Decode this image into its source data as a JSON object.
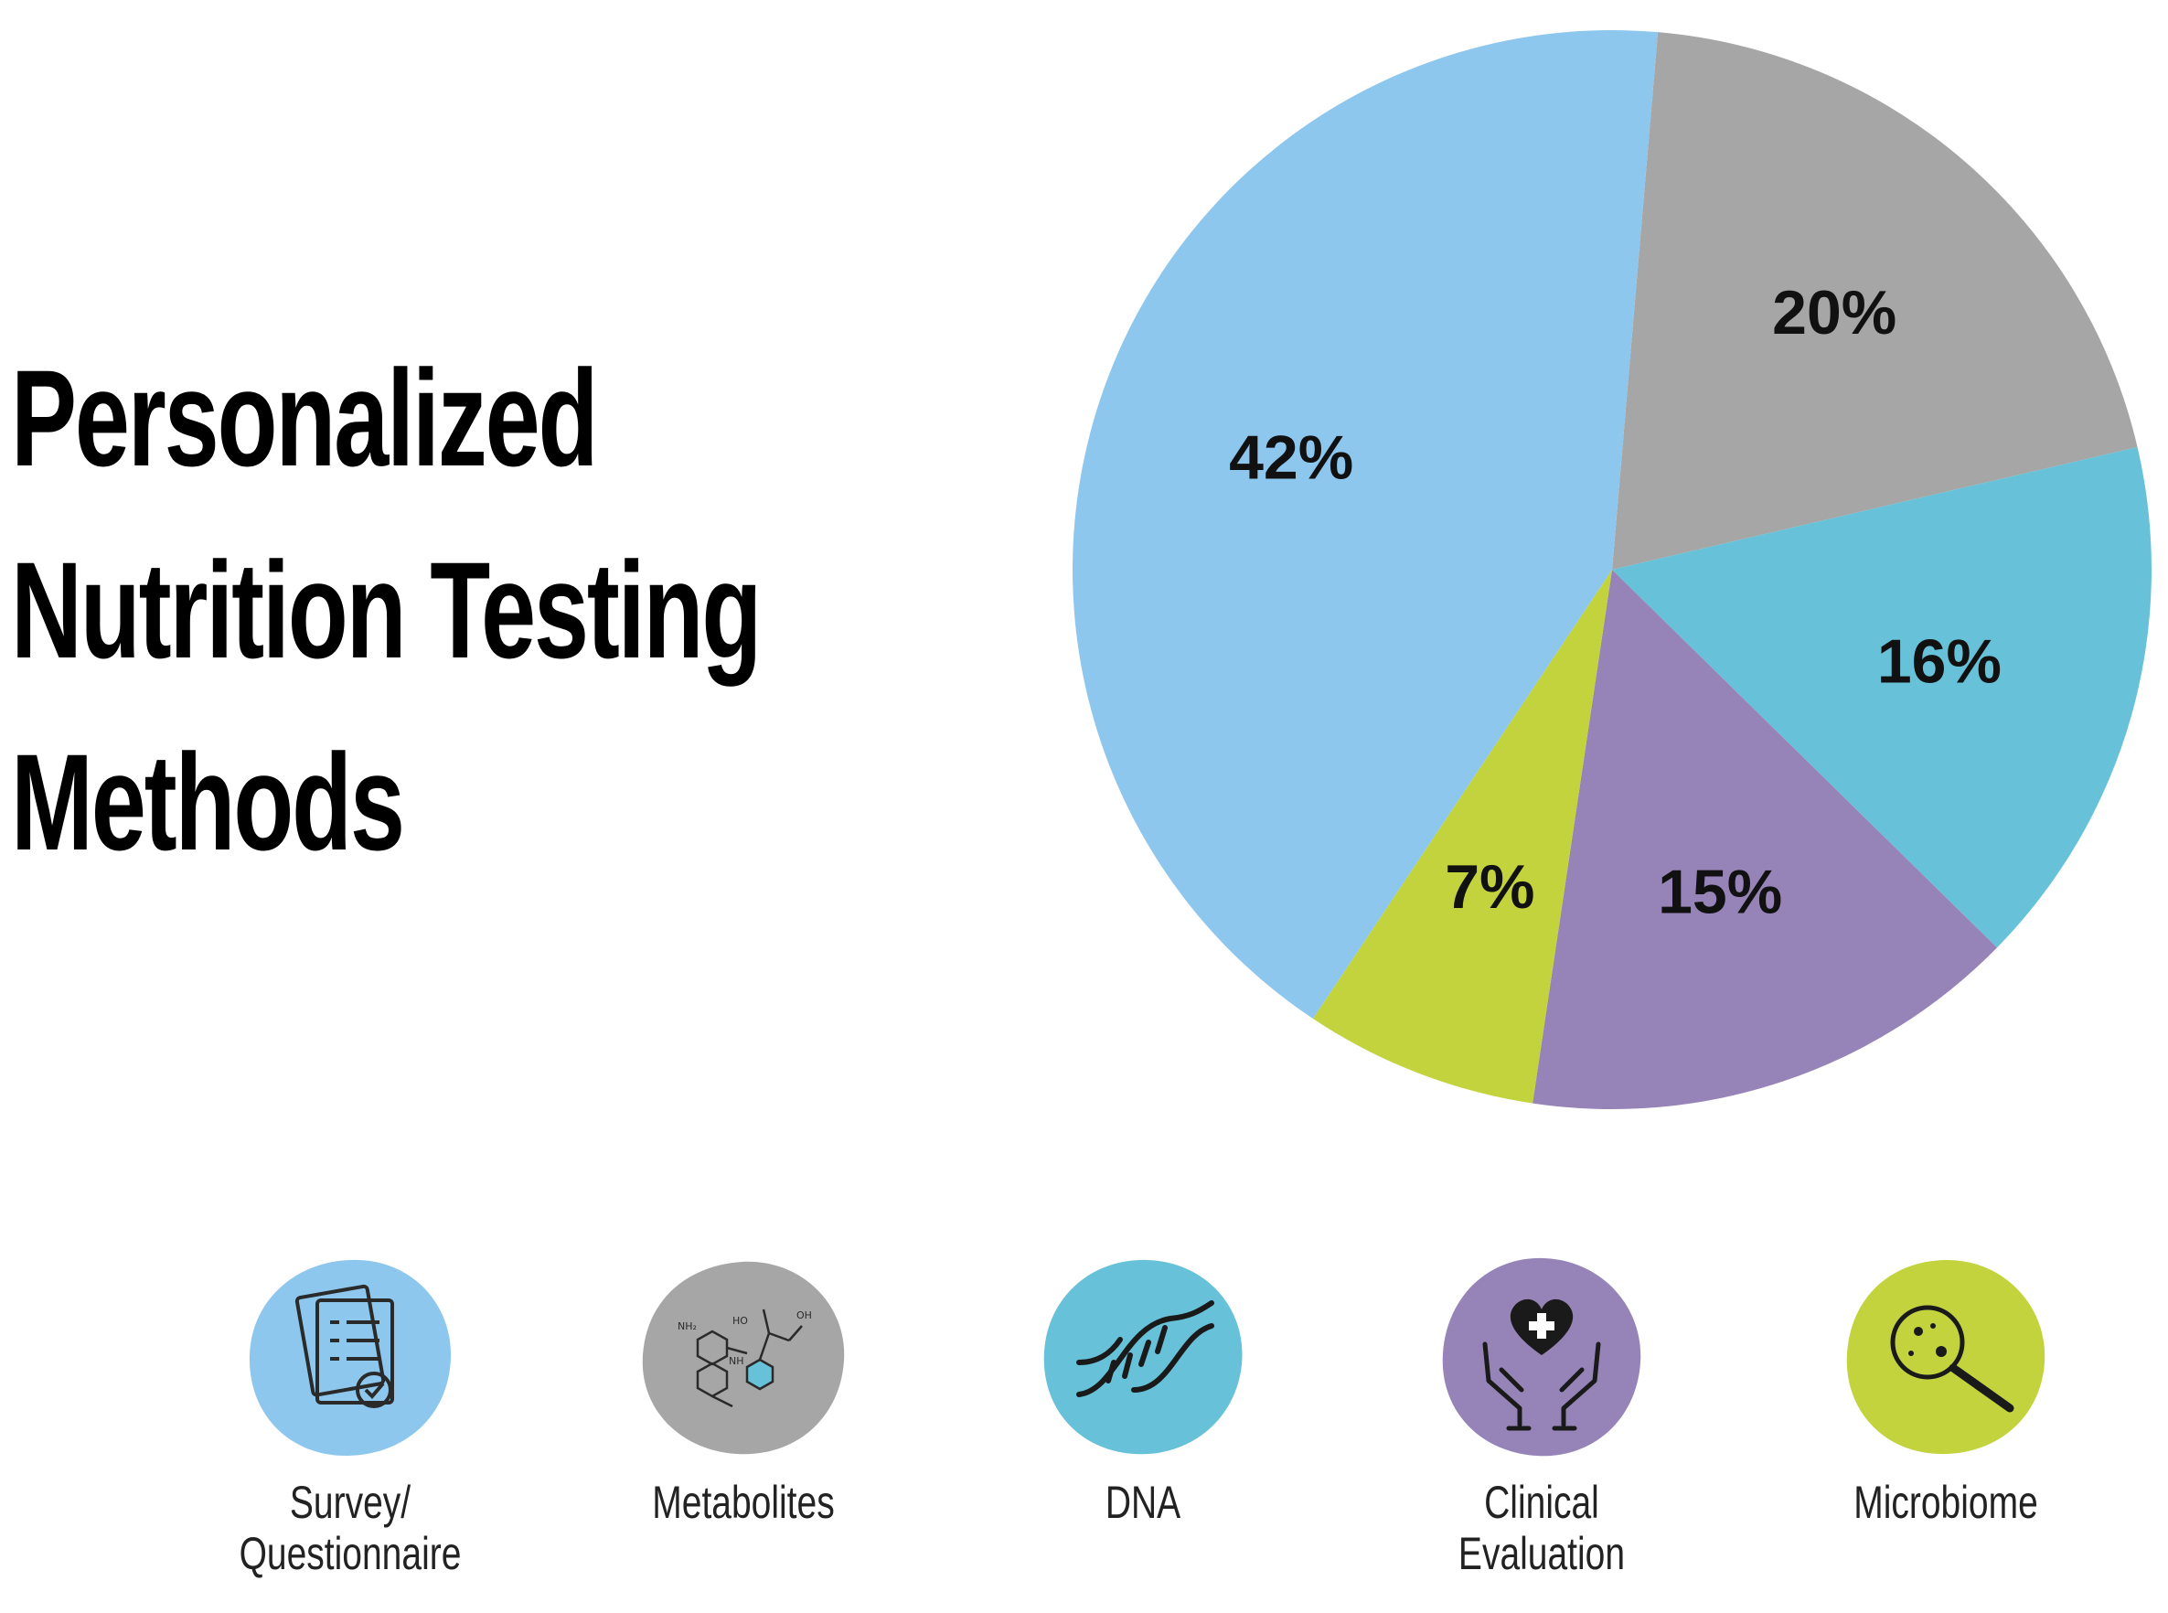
{
  "title_lines": [
    "Personalized",
    "Nutrition Testing",
    "Methods"
  ],
  "chart_data": {
    "type": "pie",
    "title": "Personalized Nutrition Testing Methods",
    "slices": [
      {
        "label": "Survey/ Questionnaire",
        "value": 42,
        "label_text": "42%",
        "color": "#8ec7ed"
      },
      {
        "label": "Metabolites",
        "value": 20,
        "label_text": "20%",
        "color": "#a6a6a6"
      },
      {
        "label": "DNA",
        "value": 16,
        "label_text": "16%",
        "color": "#67c2d9"
      },
      {
        "label": "Clinical Evaluation",
        "value": 15,
        "label_text": "15%",
        "color": "#9684b8"
      },
      {
        "label": "Microbiome",
        "value": 7,
        "label_text": "7%",
        "color": "#c3d33d"
      }
    ],
    "legend_placement": "bottom"
  },
  "legend": [
    {
      "label": "Survey/\nQuestionnaire",
      "icon": "questionnaire-icon",
      "color": "#8ec7ed"
    },
    {
      "label": "Metabolites",
      "icon": "molecule-icon",
      "color": "#a6a6a6"
    },
    {
      "label": "DNA",
      "icon": "dna-icon",
      "color": "#67c2d9"
    },
    {
      "label": "Clinical Evaluation",
      "icon": "heart-hands-icon",
      "color": "#9684b8"
    },
    {
      "label": "Microbiome",
      "icon": "magnifier-microbe-icon",
      "color": "#c3d33d"
    }
  ]
}
